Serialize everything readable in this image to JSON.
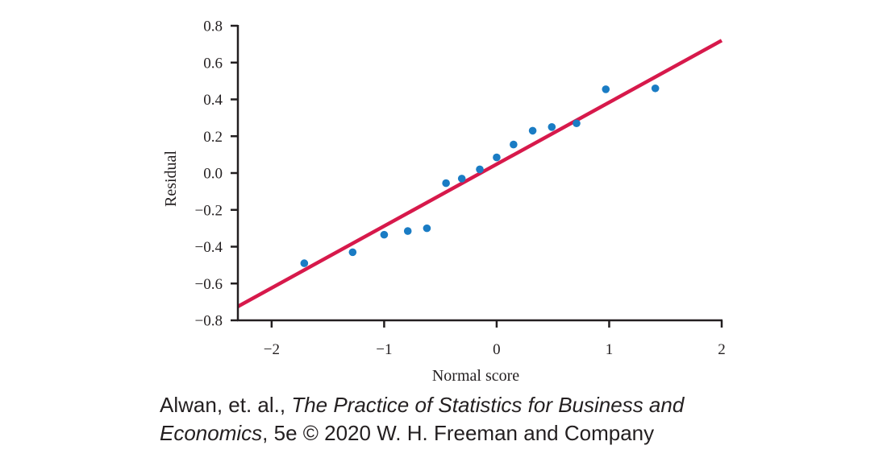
{
  "chart_data": {
    "type": "scatter",
    "xlabel": "Normal score",
    "ylabel": "Residual",
    "xlim": [
      -2.3,
      2
    ],
    "ylim": [
      -0.8,
      0.8
    ],
    "x_ticks": [
      -2,
      -1,
      0,
      1,
      2
    ],
    "x_tick_labels": [
      "−2",
      "−1",
      "0",
      "1",
      "2"
    ],
    "y_ticks": [
      0.8,
      0.6,
      0.4,
      0.2,
      0.0,
      -0.2,
      -0.4,
      -0.6,
      -0.8
    ],
    "y_tick_labels": [
      "0.8",
      "0.6",
      "0.4",
      "0.2",
      "0.0",
      "−0.2",
      "−0.4",
      "−0.6",
      "−0.8"
    ],
    "grid": false,
    "series": [
      {
        "type": "scatter",
        "color": "#1a7cc4",
        "points": [
          {
            "x": -1.71,
            "y": -0.49
          },
          {
            "x": -1.28,
            "y": -0.43
          },
          {
            "x": -1.0,
            "y": -0.335
          },
          {
            "x": -0.79,
            "y": -0.315
          },
          {
            "x": -0.62,
            "y": -0.3
          },
          {
            "x": -0.45,
            "y": -0.055
          },
          {
            "x": -0.31,
            "y": -0.03
          },
          {
            "x": -0.15,
            "y": 0.02
          },
          {
            "x": 0.0,
            "y": 0.085
          },
          {
            "x": 0.15,
            "y": 0.155
          },
          {
            "x": 0.32,
            "y": 0.23
          },
          {
            "x": 0.49,
            "y": 0.25
          },
          {
            "x": 0.71,
            "y": 0.27
          },
          {
            "x": 0.97,
            "y": 0.455
          },
          {
            "x": 1.41,
            "y": 0.46
          }
        ]
      },
      {
        "type": "line",
        "color": "#d7194b",
        "points": [
          {
            "x": -2.3,
            "y": -0.725
          },
          {
            "x": 2.0,
            "y": 0.72
          }
        ]
      }
    ]
  },
  "credit": {
    "line1_start": "Alwan, et. al., ",
    "line1_italic": "The Practice of Statistics for Business and",
    "line2_italic": "Economics",
    "line2_end": ", 5e © 2020 W. H. Freeman and Company"
  }
}
